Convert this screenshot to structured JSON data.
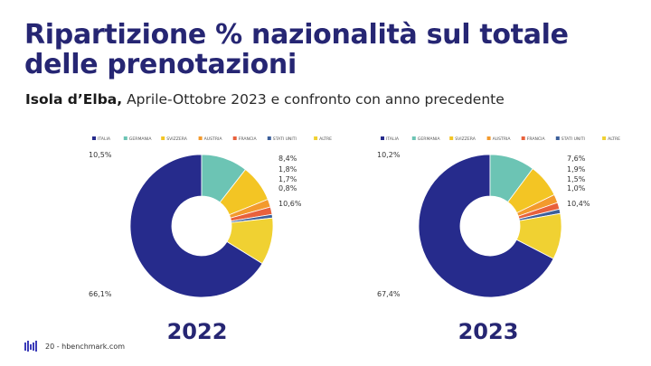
{
  "header": {
    "title": "Ripartizione % nazionalità sul totale delle prenotazioni",
    "subtitle_bold": "Isola d’Elba,",
    "subtitle_rest": " Aprile-Ottobre 2023 e confronto con anno precedente"
  },
  "footer": {
    "text": "20 - hbenchmark.com",
    "logo_color": "#3b3bb8"
  },
  "chart_data": [
    {
      "type": "pie",
      "donut": true,
      "year_label": "2022",
      "legend_placement": "top",
      "categories": [
        "ITALIA",
        "GERMANIA",
        "SVIZZERA",
        "AUSTRIA",
        "FRANCIA",
        "STATI UNITI",
        "ALTRE"
      ],
      "values": [
        66.1,
        10.5,
        8.4,
        1.8,
        1.7,
        0.8,
        10.6
      ],
      "value_labels": [
        "66,1%",
        "10,5%",
        "8,4%",
        "1,8%",
        "1,7%",
        "0,8%",
        "10,6%"
      ],
      "colors": [
        "#262b8c",
        "#6cc4b4",
        "#f3c524",
        "#f39a2d",
        "#e8613c",
        "#3c5f9a",
        "#f0d132"
      ]
    },
    {
      "type": "pie",
      "donut": true,
      "year_label": "2023",
      "legend_placement": "top",
      "categories": [
        "ITALIA",
        "GERMANIA",
        "SVIZZERA",
        "AUSTRIA",
        "FRANCIA",
        "STATI UNITI",
        "ALTRE"
      ],
      "values": [
        67.4,
        10.2,
        7.6,
        1.9,
        1.5,
        1.0,
        10.4
      ],
      "value_labels": [
        "67,4%",
        "10,2%",
        "7,6%",
        "1,9%",
        "1,5%",
        "1,0%",
        "10,4%"
      ],
      "colors": [
        "#262b8c",
        "#6cc4b4",
        "#f3c524",
        "#f39a2d",
        "#e8613c",
        "#3c5f9a",
        "#f0d132"
      ]
    }
  ]
}
